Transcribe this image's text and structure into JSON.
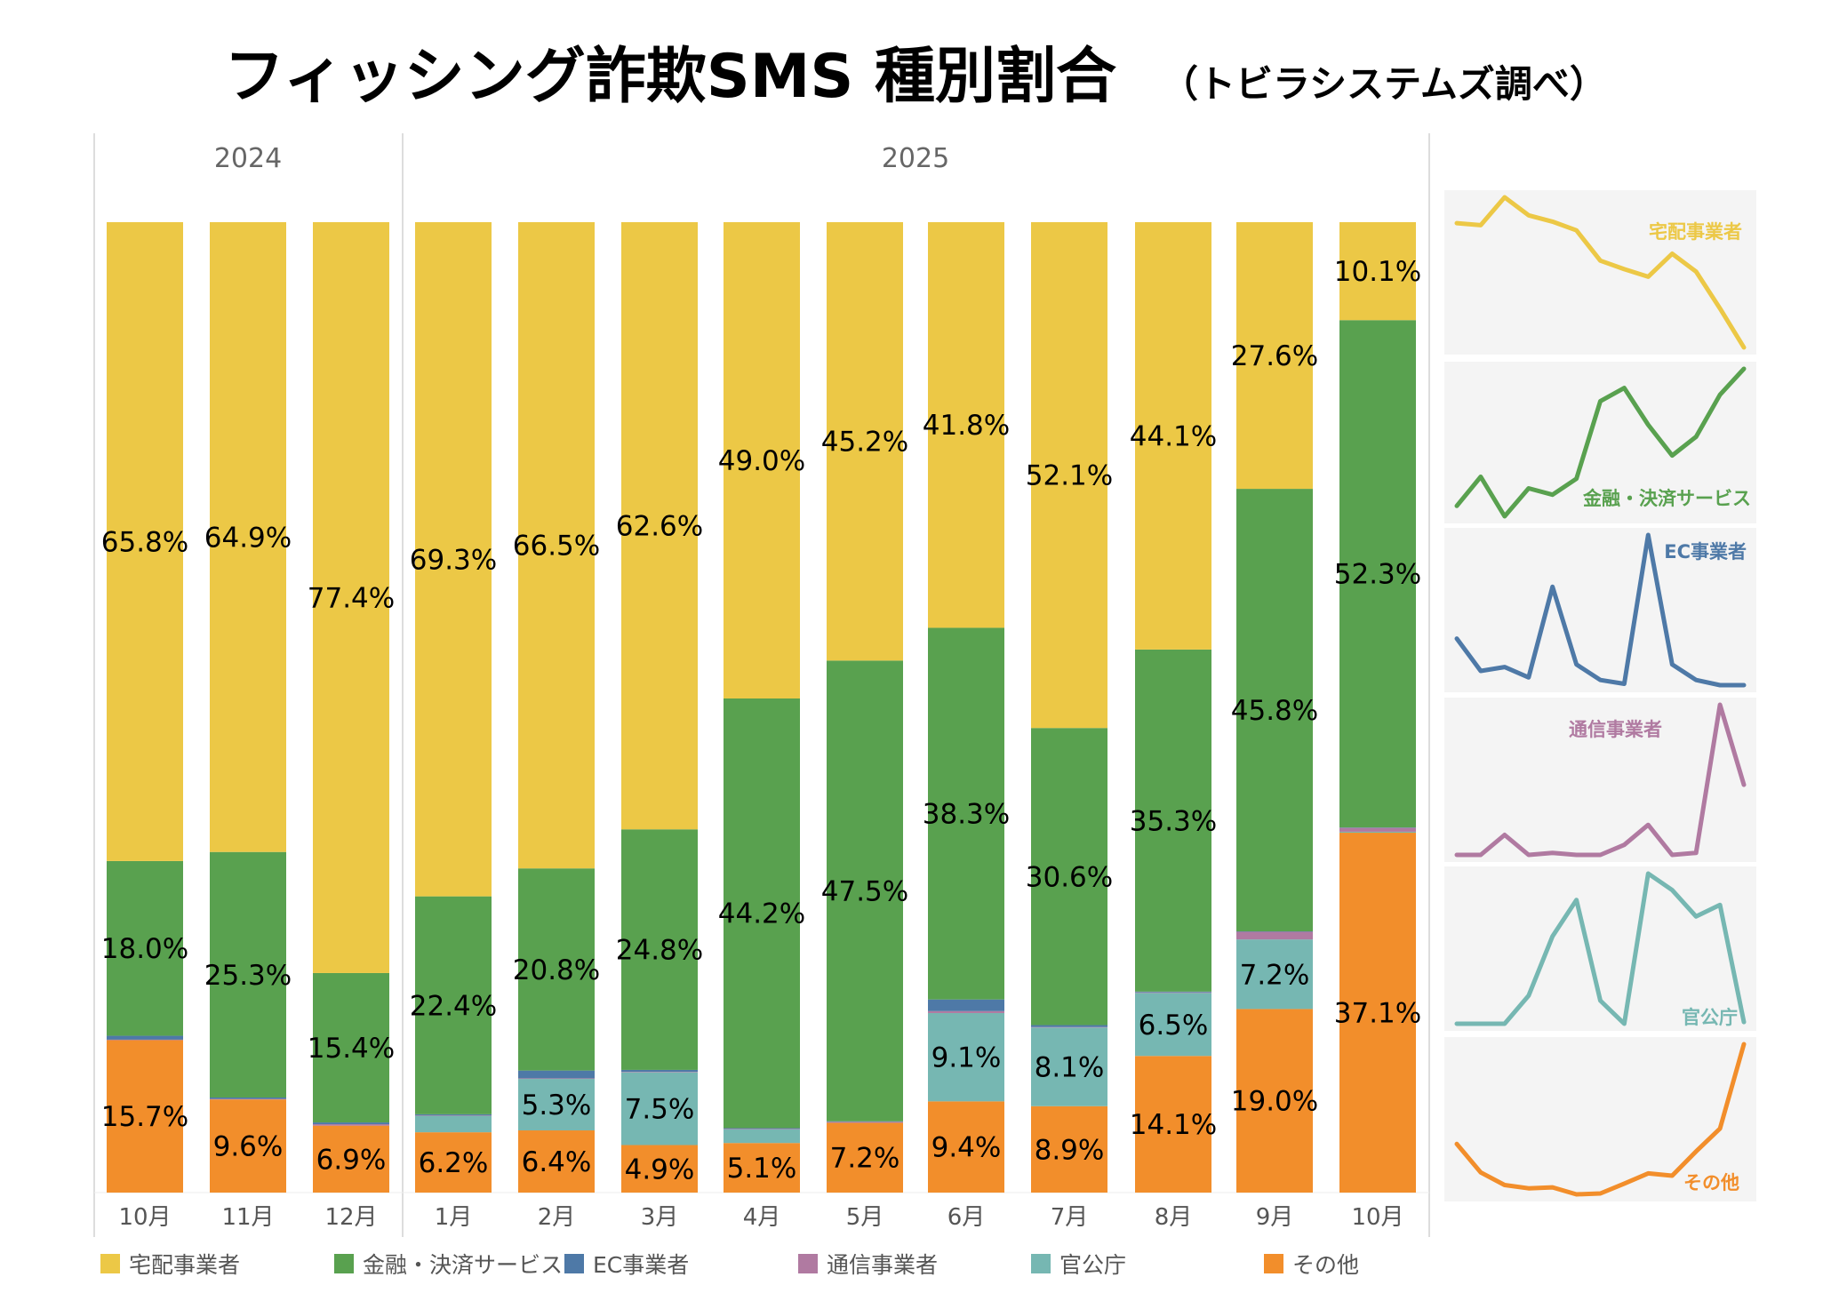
{
  "title": "フィッシング詐欺SMS 種別割合",
  "subtitle": "（トビラシステムズ調べ）",
  "chart_data": {
    "type": "bar",
    "stacked": true,
    "normalized": true,
    "years": [
      {
        "label": "2024",
        "months": 3
      },
      {
        "label": "2025",
        "months": 10
      }
    ],
    "categories": [
      "10月",
      "11月",
      "12月",
      "1月",
      "2月",
      "3月",
      "4月",
      "5月",
      "6月",
      "7月",
      "8月",
      "9月",
      "10月"
    ],
    "ylim": [
      0,
      100
    ],
    "legend_position": "bottom",
    "grid": false,
    "series": [
      {
        "name": "宅配事業者",
        "color": "#ECC846",
        "values": [
          65.8,
          64.9,
          77.4,
          69.3,
          66.5,
          62.6,
          49.0,
          45.2,
          41.8,
          52.1,
          44.1,
          27.6,
          10.1
        ]
      },
      {
        "name": "金融・決済サービス",
        "color": "#59A14F",
        "values": [
          18.0,
          25.3,
          15.4,
          22.4,
          20.8,
          24.8,
          44.2,
          47.5,
          38.3,
          30.6,
          35.3,
          45.8,
          52.3
        ]
      },
      {
        "name": "EC事業者",
        "color": "#4E79A7",
        "values": [
          0.4,
          0.15,
          0.18,
          0.1,
          0.8,
          0.2,
          0.08,
          0.05,
          1.2,
          0.2,
          0.08,
          0.04,
          0.04
        ]
      },
      {
        "name": "通信事業者",
        "color": "#B07AA1",
        "values": [
          0.05,
          0.05,
          0.15,
          0.05,
          0.06,
          0.05,
          0.05,
          0.1,
          0.2,
          0.05,
          0.06,
          0.8,
          0.4
        ]
      },
      {
        "name": "官公庁",
        "color": "#76B7B2",
        "values": [
          0,
          0,
          0,
          1.7,
          5.3,
          7.5,
          1.4,
          0,
          9.1,
          8.1,
          6.5,
          7.2,
          0.1
        ]
      },
      {
        "name": "その他",
        "color": "#F28E2B",
        "values": [
          15.7,
          9.6,
          6.9,
          6.2,
          6.4,
          4.9,
          5.1,
          7.2,
          9.4,
          8.9,
          14.1,
          19.0,
          37.1
        ]
      }
    ],
    "data_labels": [
      [
        "65.8%",
        "64.9%",
        "77.4%",
        "69.3%",
        "66.5%",
        "62.6%",
        "49.0%",
        "45.2%",
        "41.8%",
        "52.1%",
        "44.1%",
        "27.6%",
        "10.1%"
      ],
      [
        "18.0%",
        "25.3%",
        "15.4%",
        "22.4%",
        "20.8%",
        "24.8%",
        "44.2%",
        "47.5%",
        "38.3%",
        "30.6%",
        "35.3%",
        "45.8%",
        "52.3%"
      ],
      [
        "",
        "",
        "",
        "",
        "",
        "",
        "",
        "",
        "",
        "",
        "",
        "",
        ""
      ],
      [
        "",
        "",
        "",
        "",
        "",
        "",
        "",
        "",
        "",
        "",
        "",
        "",
        ""
      ],
      [
        "",
        "",
        "",
        "",
        "5.3%",
        "7.5%",
        "",
        "",
        "9.1%",
        "8.1%",
        "6.5%",
        "7.2%",
        ""
      ],
      [
        "15.7%",
        "9.6%",
        "6.9%",
        "6.2%",
        "6.4%",
        "4.9%",
        "5.1%",
        "7.2%",
        "9.4%",
        "8.9%",
        "14.1%",
        "19.0%",
        "37.1%"
      ]
    ],
    "sparklines": {
      "type": "line",
      "description_of_layout": "small multiples, one per series, right side",
      "labels": [
        "宅配事業者",
        "金融・決済サービス",
        "EC事業者",
        "通信事業者",
        "官公庁",
        "その他"
      ]
    }
  }
}
